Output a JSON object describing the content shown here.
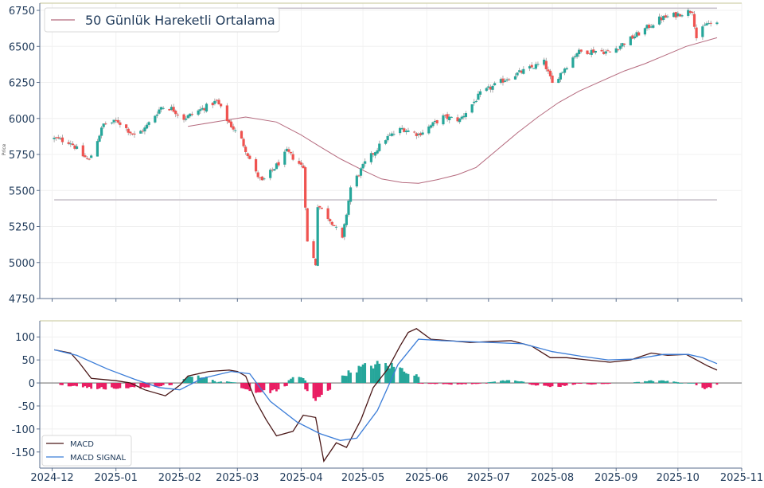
{
  "chart_data": [
    {
      "type": "candlestick",
      "title": "",
      "ylabel": "Price",
      "ylim": [
        4750,
        6800
      ],
      "yticks": [
        4750,
        5000,
        5250,
        5500,
        5750,
        6000,
        6250,
        6500,
        6750
      ],
      "xlim": [
        "2024-11-25",
        "2025-11-01"
      ],
      "xticks": [
        "2024-12",
        "2025-01",
        "2025-02",
        "2025-03",
        "2025-04",
        "2025-05",
        "2025-06",
        "2025-07",
        "2025-08",
        "2025-09",
        "2025-10",
        "2025-11"
      ],
      "grid": true,
      "legend": {
        "position": "top-left",
        "entries": [
          "50 Günlük Hareketli Ortalama"
        ]
      },
      "up_color": "#26a69a",
      "down_color": "#ef5350",
      "ma_color": "#b56a7e",
      "hline_color": "#c9c3cc",
      "horizontal_lines": [
        6765,
        5435
      ],
      "close_anchors": [
        [
          "2024-12-02",
          5860
        ],
        [
          "2024-12-10",
          5835
        ],
        [
          "2024-12-16",
          5740
        ],
        [
          "2024-12-19",
          5710
        ],
        [
          "2024-12-26",
          5960
        ],
        [
          "2025-01-02",
          5980
        ],
        [
          "2025-01-10",
          5880
        ],
        [
          "2025-01-15",
          5930
        ],
        [
          "2025-01-23",
          6080
        ],
        [
          "2025-01-28",
          6070
        ],
        [
          "2025-02-03",
          6000
        ],
        [
          "2025-02-07",
          6030
        ],
        [
          "2025-02-19",
          6120
        ],
        [
          "2025-02-24",
          5990
        ],
        [
          "2025-03-03",
          5850
        ],
        [
          "2025-03-10",
          5620
        ],
        [
          "2025-03-13",
          5560
        ],
        [
          "2025-03-21",
          5690
        ],
        [
          "2025-03-25",
          5770
        ],
        [
          "2025-04-02",
          5660
        ],
        [
          "2025-04-04",
          5140
        ],
        [
          "2025-04-08",
          4990
        ],
        [
          "2025-04-09",
          5400
        ],
        [
          "2025-04-16",
          5280
        ],
        [
          "2025-04-21",
          5160
        ],
        [
          "2025-04-25",
          5520
        ],
        [
          "2025-05-02",
          5690
        ],
        [
          "2025-05-12",
          5860
        ],
        [
          "2025-05-20",
          5930
        ],
        [
          "2025-05-28",
          5890
        ],
        [
          "2025-06-09",
          6010
        ],
        [
          "2025-06-17",
          5990
        ],
        [
          "2025-06-27",
          6170
        ],
        [
          "2025-07-10",
          6280
        ],
        [
          "2025-07-28",
          6390
        ],
        [
          "2025-08-01",
          6240
        ],
        [
          "2025-08-13",
          6460
        ],
        [
          "2025-08-22",
          6470
        ],
        [
          "2025-08-29",
          6460
        ],
        [
          "2025-09-12",
          6590
        ],
        [
          "2025-09-22",
          6690
        ],
        [
          "2025-10-08",
          6750
        ],
        [
          "2025-10-10",
          6560
        ],
        [
          "2025-10-15",
          6660
        ],
        [
          "2025-10-20",
          6650
        ]
      ],
      "ma50_points": [
        [
          "2025-02-05",
          5945
        ],
        [
          "2025-02-20",
          5980
        ],
        [
          "2025-03-05",
          6010
        ],
        [
          "2025-03-20",
          5975
        ],
        [
          "2025-04-01",
          5885
        ],
        [
          "2025-04-10",
          5805
        ],
        [
          "2025-04-20",
          5720
        ],
        [
          "2025-05-01",
          5640
        ],
        [
          "2025-05-10",
          5580
        ],
        [
          "2025-05-20",
          5555
        ],
        [
          "2025-05-28",
          5550
        ],
        [
          "2025-06-06",
          5575
        ],
        [
          "2025-06-16",
          5610
        ],
        [
          "2025-06-25",
          5660
        ],
        [
          "2025-07-05",
          5780
        ],
        [
          "2025-07-15",
          5900
        ],
        [
          "2025-07-25",
          6010
        ],
        [
          "2025-08-04",
          6110
        ],
        [
          "2025-08-14",
          6190
        ],
        [
          "2025-08-25",
          6260
        ],
        [
          "2025-09-05",
          6330
        ],
        [
          "2025-09-15",
          6380
        ],
        [
          "2025-09-25",
          6440
        ],
        [
          "2025-10-05",
          6500
        ],
        [
          "2025-10-20",
          6560
        ]
      ]
    },
    {
      "type": "line+bar",
      "ylim": [
        -185,
        135
      ],
      "yticks": [
        -150,
        -100,
        -50,
        0,
        50,
        100
      ],
      "legend": {
        "position": "bottom-left",
        "entries": [
          "MACD",
          "MACD SIGNAL"
        ]
      },
      "series": [
        {
          "name": "MACD",
          "color": "#4a1717",
          "points": [
            [
              "2024-12-02",
              72
            ],
            [
              "2024-12-10",
              65
            ],
            [
              "2024-12-14",
              45
            ],
            [
              "2024-12-20",
              10
            ],
            [
              "2025-01-01",
              5
            ],
            [
              "2025-01-08",
              0
            ],
            [
              "2025-01-15",
              -15
            ],
            [
              "2025-01-25",
              -28
            ],
            [
              "2025-02-01",
              -5
            ],
            [
              "2025-02-05",
              15
            ],
            [
              "2025-02-15",
              25
            ],
            [
              "2025-02-25",
              28
            ],
            [
              "2025-03-01",
              25
            ],
            [
              "2025-03-05",
              15
            ],
            [
              "2025-03-10",
              -40
            ],
            [
              "2025-03-15",
              -80
            ],
            [
              "2025-03-20",
              -115
            ],
            [
              "2025-03-28",
              -105
            ],
            [
              "2025-04-02",
              -70
            ],
            [
              "2025-04-08",
              -75
            ],
            [
              "2025-04-12",
              -170
            ],
            [
              "2025-04-18",
              -130
            ],
            [
              "2025-04-23",
              -140
            ],
            [
              "2025-04-30",
              -80
            ],
            [
              "2025-05-06",
              -10
            ],
            [
              "2025-05-13",
              30
            ],
            [
              "2025-05-19",
              80
            ],
            [
              "2025-05-23",
              110
            ],
            [
              "2025-05-27",
              118
            ],
            [
              "2025-06-03",
              95
            ],
            [
              "2025-06-12",
              92
            ],
            [
              "2025-06-22",
              88
            ],
            [
              "2025-07-02",
              90
            ],
            [
              "2025-07-12",
              92
            ],
            [
              "2025-07-22",
              80
            ],
            [
              "2025-07-31",
              55
            ],
            [
              "2025-08-08",
              55
            ],
            [
              "2025-08-18",
              50
            ],
            [
              "2025-08-29",
              45
            ],
            [
              "2025-09-08",
              50
            ],
            [
              "2025-09-18",
              65
            ],
            [
              "2025-09-26",
              60
            ],
            [
              "2025-10-05",
              62
            ],
            [
              "2025-10-10",
              50
            ],
            [
              "2025-10-15",
              38
            ],
            [
              "2025-10-20",
              28
            ]
          ]
        },
        {
          "name": "MACD SIGNAL",
          "color": "#3b7dd8",
          "points": [
            [
              "2024-12-02",
              72
            ],
            [
              "2024-12-13",
              60
            ],
            [
              "2024-12-28",
              30
            ],
            [
              "2025-01-10",
              8
            ],
            [
              "2025-01-22",
              -10
            ],
            [
              "2025-02-01",
              -15
            ],
            [
              "2025-02-12",
              10
            ],
            [
              "2025-02-26",
              25
            ],
            [
              "2025-03-07",
              20
            ],
            [
              "2025-03-17",
              -40
            ],
            [
              "2025-03-30",
              -85
            ],
            [
              "2025-04-10",
              -110
            ],
            [
              "2025-04-20",
              -125
            ],
            [
              "2025-04-28",
              -120
            ],
            [
              "2025-05-08",
              -60
            ],
            [
              "2025-05-18",
              40
            ],
            [
              "2025-05-28",
              95
            ],
            [
              "2025-06-08",
              92
            ],
            [
              "2025-06-20",
              90
            ],
            [
              "2025-07-02",
              88
            ],
            [
              "2025-07-18",
              85
            ],
            [
              "2025-08-01",
              68
            ],
            [
              "2025-08-15",
              58
            ],
            [
              "2025-08-28",
              50
            ],
            [
              "2025-09-10",
              52
            ],
            [
              "2025-09-24",
              62
            ],
            [
              "2025-10-06",
              62
            ],
            [
              "2025-10-13",
              55
            ],
            [
              "2025-10-20",
              42
            ]
          ]
        }
      ],
      "histogram": {
        "pos_color": "#26a69a",
        "neg_color": "#e91e63",
        "segments": [
          [
            "2024-12-05",
            "2025-01-28",
            -12
          ],
          [
            "2025-02-01",
            "2025-02-18",
            15
          ],
          [
            "2025-02-18",
            "2025-02-28",
            3
          ],
          [
            "2025-03-01",
            "2025-03-25",
            -20
          ],
          [
            "2025-03-26",
            "2025-04-03",
            15
          ],
          [
            "2025-04-03",
            "2025-04-15",
            -35
          ],
          [
            "2025-04-20",
            "2025-05-28",
            40
          ],
          [
            "2025-05-28",
            "2025-06-30",
            -3
          ],
          [
            "2025-07-01",
            "2025-07-20",
            5
          ],
          [
            "2025-07-21",
            "2025-08-12",
            -8
          ],
          [
            "2025-08-12",
            "2025-08-30",
            -3
          ],
          [
            "2025-09-10",
            "2025-10-01",
            5
          ],
          [
            "2025-10-01",
            "2025-10-10",
            0
          ],
          [
            "2025-10-10",
            "2025-10-20",
            -12
          ]
        ]
      }
    }
  ]
}
